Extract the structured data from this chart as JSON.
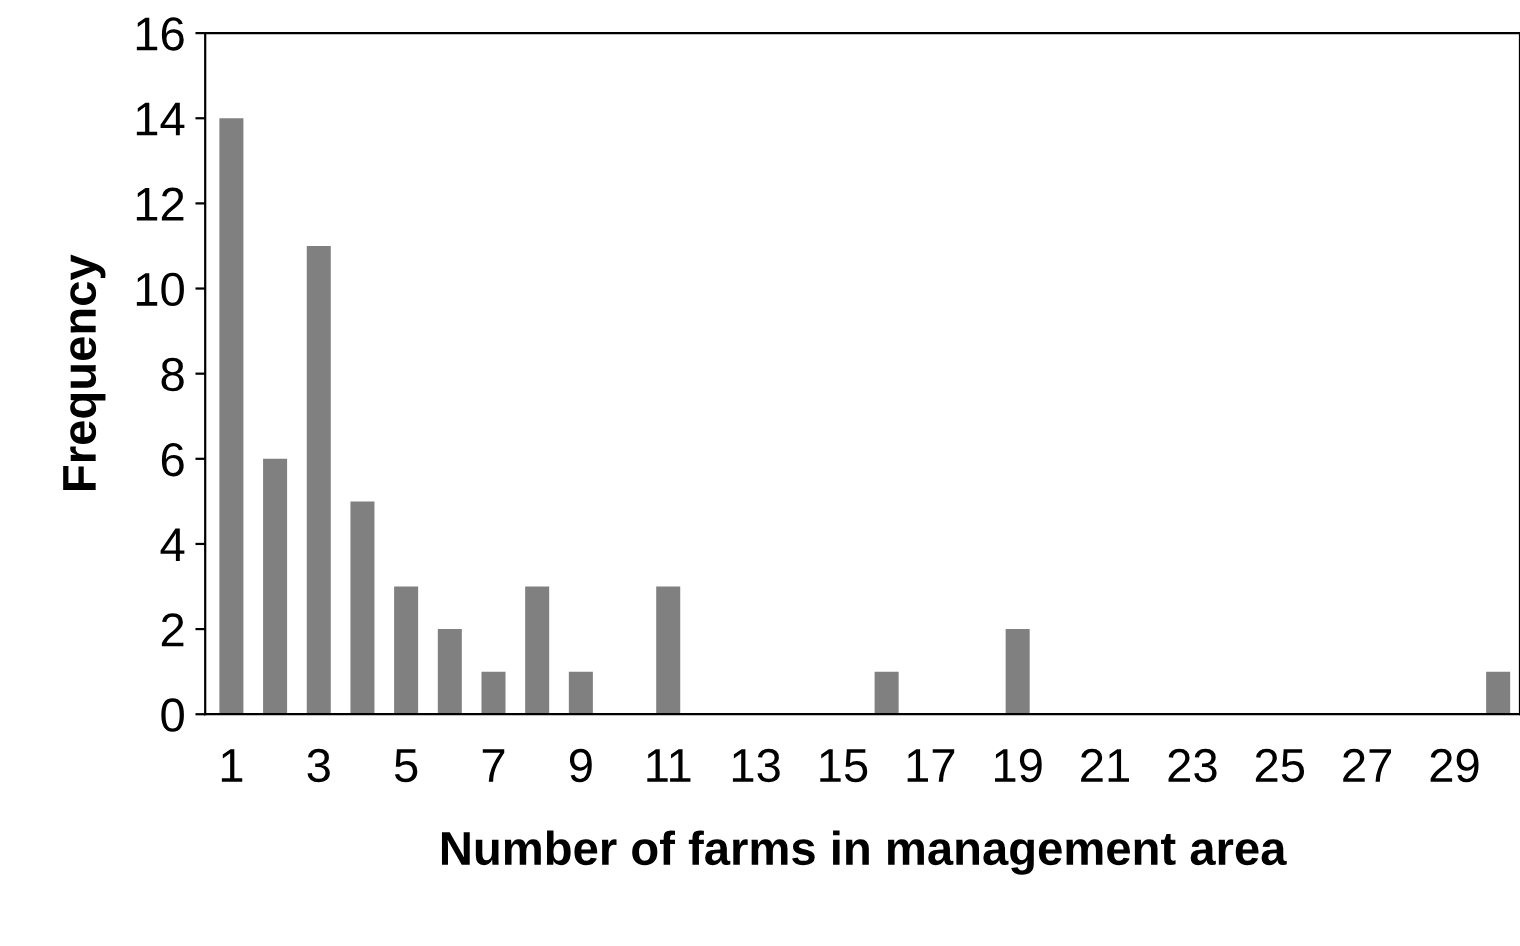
{
  "chart_data": {
    "type": "bar",
    "xlabel": "Number of farms in management area",
    "ylabel": "Frequency",
    "categories": [
      "1",
      null,
      "3",
      null,
      "5",
      null,
      "7",
      null,
      "9",
      null,
      "11",
      null,
      "13",
      null,
      "15",
      null,
      "17",
      null,
      "19",
      null,
      "21",
      null,
      "23",
      null,
      "25",
      null,
      "27",
      null,
      "29",
      null
    ],
    "values": [
      14,
      6,
      11,
      5,
      3,
      2,
      1,
      3,
      1,
      0,
      3,
      0,
      0,
      0,
      0,
      1,
      0,
      0,
      2,
      0,
      0,
      0,
      0,
      0,
      0,
      0,
      0,
      0,
      0,
      1
    ],
    "color": "#808080",
    "ylim": [
      0,
      16
    ],
    "yticks": [
      0,
      2,
      4,
      6,
      8,
      10,
      12,
      14,
      16
    ],
    "grid": false,
    "legend": false
  }
}
